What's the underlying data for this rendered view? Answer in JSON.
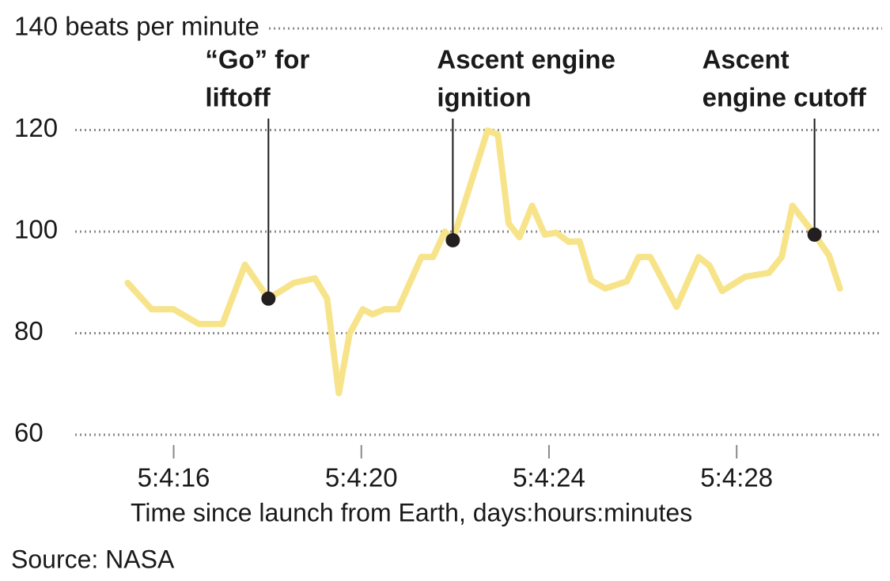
{
  "chart_data": {
    "type": "line",
    "x": [
      15.02,
      15.53,
      16.0,
      16.54,
      17.04,
      17.52,
      18.02,
      18.56,
      19.01,
      19.27,
      19.52,
      19.75,
      20.03,
      20.24,
      20.49,
      20.78,
      21.28,
      21.53,
      21.78,
      21.95,
      22.69,
      22.91,
      23.14,
      23.37,
      23.64,
      23.91,
      24.15,
      24.42,
      24.65,
      24.9,
      25.2,
      25.66,
      25.91,
      26.16,
      26.72,
      27.19,
      27.42,
      27.69,
      28.18,
      28.69,
      28.96,
      29.19,
      29.66,
      29.97,
      30.2
    ],
    "values": [
      89.9,
      84.7,
      84.7,
      81.8,
      81.8,
      93.5,
      86.8,
      89.9,
      90.8,
      86.8,
      68.2,
      79.9,
      84.7,
      83.7,
      84.7,
      84.7,
      95.0,
      95.0,
      100,
      98.3,
      119.9,
      119.1,
      101.6,
      98.9,
      105.1,
      99.4,
      99.8,
      98.0,
      98.1,
      90.4,
      88.8,
      90.2,
      95.0,
      95.0,
      85.2,
      95.0,
      93.3,
      88.3,
      91.1,
      91.9,
      95.0,
      105.1,
      99.4,
      95.3,
      88.8
    ],
    "color": "#f7e48a",
    "marker_color": "#231f20",
    "xlim": [
      13.9,
      31.1
    ],
    "ylim": [
      60,
      140
    ],
    "xticks": [
      {
        "value": 16,
        "label": "5:4:16"
      },
      {
        "value": 20,
        "label": "5:4:20"
      },
      {
        "value": 24,
        "label": "5:4:24"
      },
      {
        "value": 28,
        "label": "5:4:28"
      }
    ],
    "yticks": [
      60,
      80,
      100,
      120,
      {
        "value": 140,
        "label": "140 beats per minute"
      }
    ],
    "grid": true,
    "xlabel": "Time since launch from Earth, days:hours:minutes",
    "source": "Source: NASA",
    "annotations": [
      {
        "lines": [
          "“Go” for",
          "liftoff"
        ],
        "x": 18.02,
        "y": 86.8
      },
      {
        "lines": [
          "Ascent engine",
          "ignition"
        ],
        "x": 21.95,
        "y": 98.3
      },
      {
        "lines": [
          "Ascent",
          "engine cutoff"
        ],
        "x": 29.66,
        "y": 99.4
      }
    ]
  }
}
